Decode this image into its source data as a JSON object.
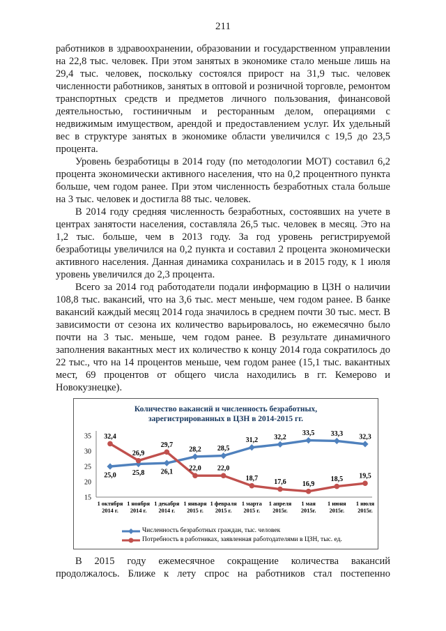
{
  "page": {
    "number": "211"
  },
  "body": {
    "paragraphs": [
      {
        "text": "работников в здравоохранении, образовании и государственном управлении на 22,8 тыс. человек. При этом занятых в экономике стало меньше лишь на 29,4 тыс. человек, поскольку состоялся прирост на 31,9 тыс. человек численности работников, занятых в оптовой и розничной торговле, ремонтом транспортных средств и предметов личного пользования, финансовой деятельностью, гостиничным и ресторанным делом, операциями с недвижимым имуществом, арендой и предоставлением услуг. Их удельный вес в структуре занятых в экономике области увеличился с 19,5 до 23,5 процента."
      },
      {
        "text": "Уровень безработицы в 2014 году (по методологии МОТ) составил 6,2 процента экономически активного населения, что на 0,2 процентного пункта больше, чем годом ранее. При этом численность безработных стала больше на 3 тыс. человек и достигла 88 тыс. человек."
      },
      {
        "text": "В 2014 году средняя численность безработных, состоявших на учете в центрах занятости населения, составляла 26,5 тыс. человек в месяц. Это на 1,2 тыс. больше, чем в 2013 году. За год уровень регистрируемой безработицы увеличился на 0,2 пункта и составил 2 процента экономически активного населения. Данная динамика сохранилась и в 2015 году, к 1 июля уровень увеличился до 2,3 процента."
      },
      {
        "text": "Всего за 2014 год работодатели подали информацию в ЦЗН о наличии 108,8 тыс. вакансий, что на 3,6 тыс. мест меньше, чем годом ранее. В банке вакансий каждый месяц 2014 года значилось в среднем почти 30 тыс. мест. В зависимости от сезона их количество варьировалось, но ежемесячно было почти на 3 тыс. меньше, чем годом ранее. В результате динамичного заполнения вакантных мест их количество к концу 2014 года сократилось до 22 тыс., что на 14 процентов меньше, чем годом ранее (15,1 тыс. вакантных мест, 69 процентов от общего числа находились в гг. Кемерово и Новокузнецке)."
      }
    ],
    "after_chart_paragraph": {
      "text": "В 2015 году ежемесячное сокращение количества вакансий продолжалось. Ближе к лету спрос на работников стал постепенно"
    }
  },
  "chart_data": {
    "type": "line",
    "title_line1": "Количество вакансий и численность безработных,",
    "title_line2": "зарегистрированных в ЦЗН в 2014-2015 гг.",
    "title_color": "#17375E",
    "categories": [
      [
        "1 октября",
        "2014 г."
      ],
      [
        "1 ноября",
        "2014 г."
      ],
      [
        "1 декабря",
        "2014 г."
      ],
      [
        "1 января",
        "2015 г."
      ],
      [
        "1 февраля",
        "2015 г."
      ],
      [
        "1 марта",
        "2015 г."
      ],
      [
        "1 апреля",
        "2015г."
      ],
      [
        "1 мая",
        "2015г."
      ],
      [
        "1 июня",
        "2015г."
      ],
      [
        "1 июля",
        "2015г."
      ]
    ],
    "series": [
      {
        "name": "Численность безработных граждан, тыс. человек",
        "color": "#4F81BD",
        "marker": "diamond",
        "values": [
          25.0,
          25.8,
          26.1,
          28.2,
          28.5,
          31.2,
          32.2,
          33.5,
          33.3,
          32.3
        ],
        "labels": [
          "25,0",
          "25,8",
          "26,1",
          "28,2",
          "28,5",
          "31,2",
          "32,2",
          "33,5",
          "33,3",
          "32,3"
        ],
        "label_positions": [
          "below",
          "below",
          "below",
          "above",
          "above",
          "above",
          "above",
          "above",
          "above",
          "above"
        ]
      },
      {
        "name": "Потребность в работниках, заявленная работодателями в ЦЗН, тыс. ед.",
        "color": "#C0504D",
        "marker": "circle",
        "values": [
          32.4,
          26.9,
          29.7,
          22.0,
          22.0,
          18.7,
          17.6,
          16.9,
          18.5,
          19.5
        ],
        "labels": [
          "32,4",
          "26,9",
          "29,7",
          "22,0",
          "22,0",
          "18,7",
          "17,6",
          "16,9",
          "18,5",
          "19,5"
        ],
        "label_positions": [
          "above",
          "above",
          "above",
          "above",
          "above",
          "above",
          "above",
          "above",
          "above",
          "above"
        ]
      }
    ],
    "y_ticks": [
      35,
      30,
      25,
      20,
      15
    ],
    "ylim": [
      15,
      35
    ],
    "grid": false,
    "legend_position": "bottom",
    "axis_color": "#7f7f7f"
  }
}
